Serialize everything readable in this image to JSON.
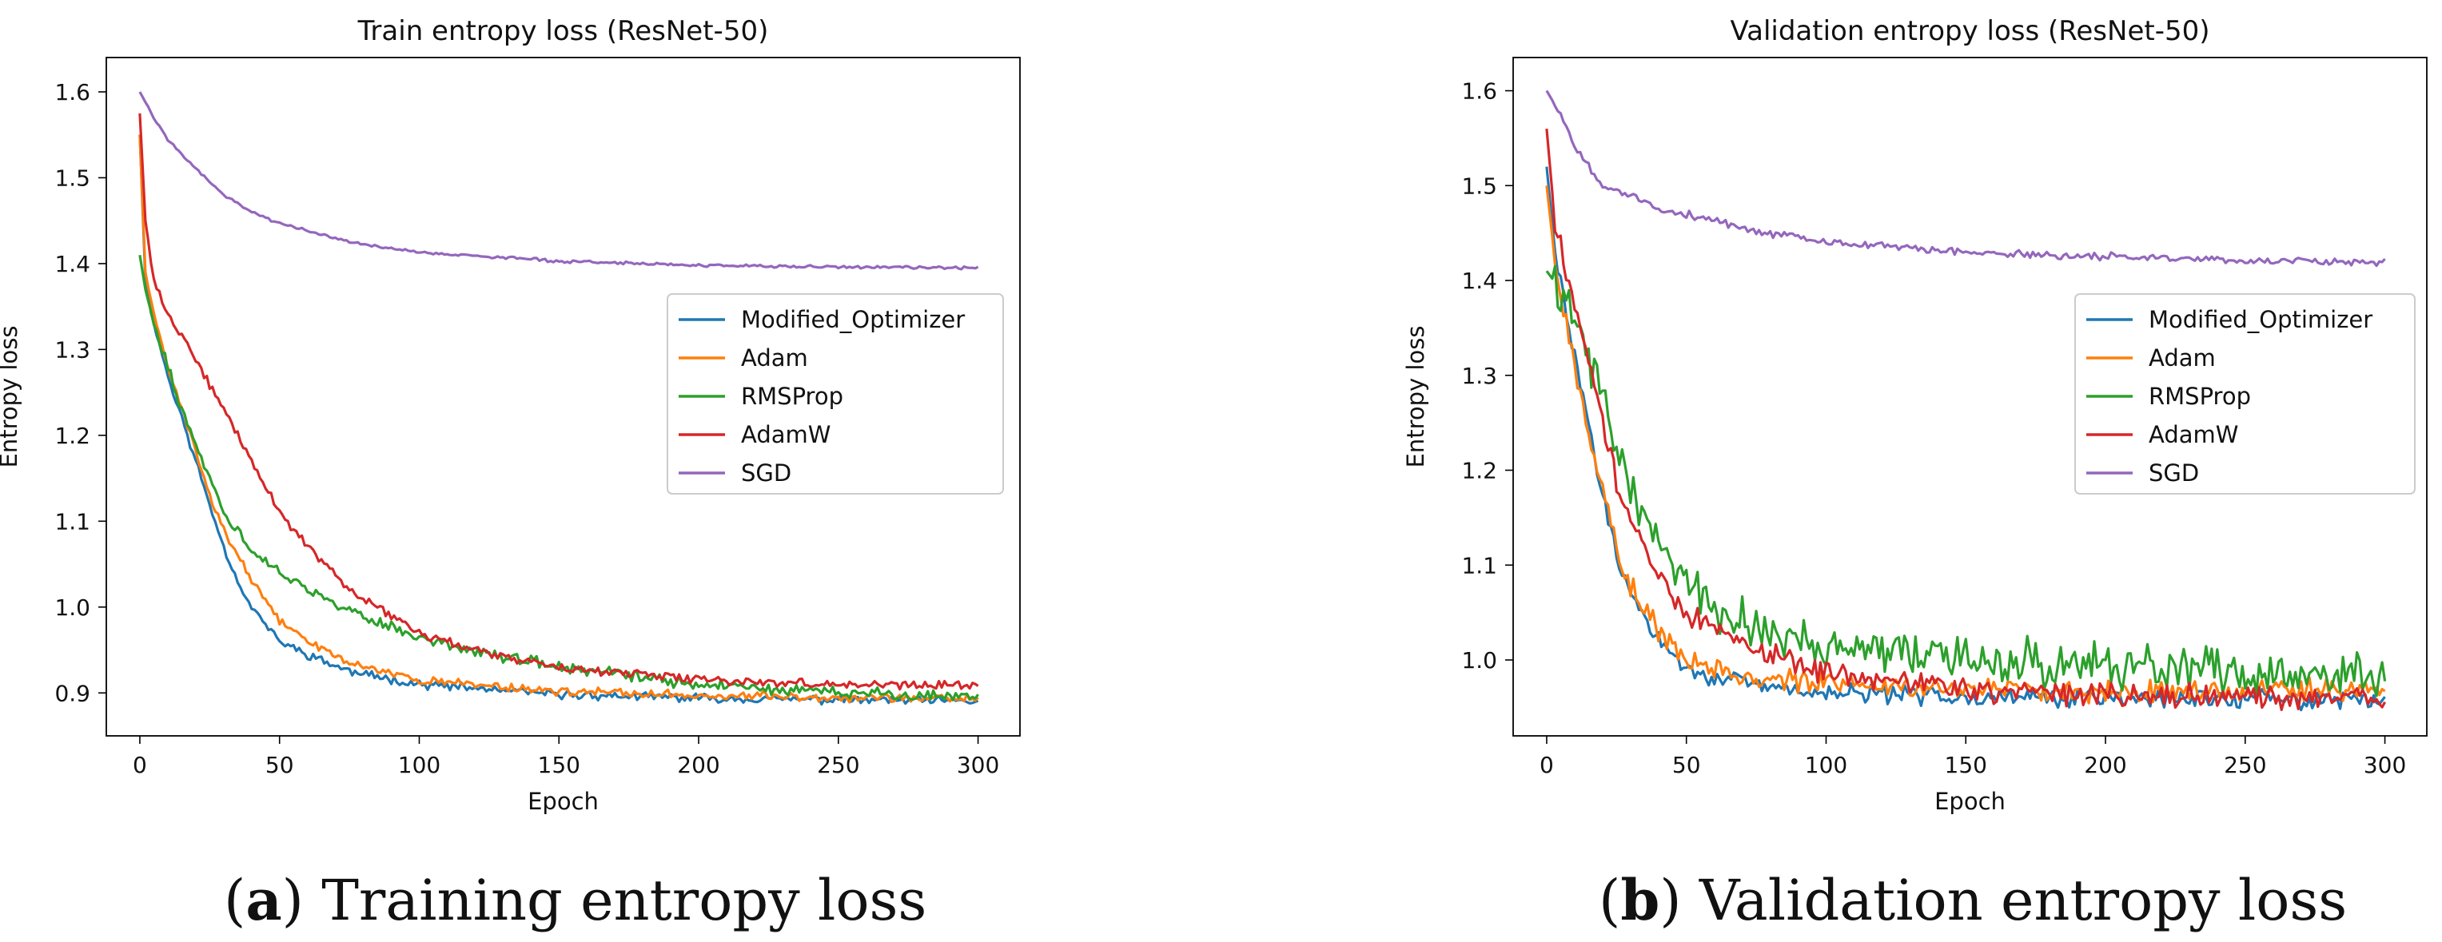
{
  "chart_data": [
    {
      "type": "line",
      "title": "Train entropy loss (ResNet-50)",
      "xlabel": "Epoch",
      "ylabel": "Entropy loss",
      "xlim": [
        -12,
        315
      ],
      "ylim": [
        0.85,
        1.64
      ],
      "xticks": [
        0,
        50,
        100,
        150,
        200,
        250,
        300
      ],
      "yticks": [
        0.9,
        1.0,
        1.1,
        1.2,
        1.3,
        1.4,
        1.5,
        1.6
      ],
      "legend_position": "center-right",
      "grid": false,
      "noise_seed": 11,
      "series": [
        {
          "name": "Modified_Optimizer",
          "color": "#1f77b4",
          "noise": 0.006,
          "points": [
            [
              0,
              1.55
            ],
            [
              2,
              1.38
            ],
            [
              5,
              1.33
            ],
            [
              10,
              1.27
            ],
            [
              15,
              1.22
            ],
            [
              20,
              1.17
            ],
            [
              25,
              1.12
            ],
            [
              30,
              1.07
            ],
            [
              35,
              1.03
            ],
            [
              40,
              1.0
            ],
            [
              50,
              0.96
            ],
            [
              60,
              0.945
            ],
            [
              75,
              0.925
            ],
            [
              100,
              0.91
            ],
            [
              150,
              0.898
            ],
            [
              200,
              0.894
            ],
            [
              300,
              0.89
            ]
          ]
        },
        {
          "name": "Adam",
          "color": "#ff7f0e",
          "noise": 0.006,
          "points": [
            [
              0,
              1.55
            ],
            [
              2,
              1.39
            ],
            [
              5,
              1.34
            ],
            [
              10,
              1.28
            ],
            [
              15,
              1.23
            ],
            [
              20,
              1.18
            ],
            [
              25,
              1.13
            ],
            [
              30,
              1.09
            ],
            [
              35,
              1.06
            ],
            [
              40,
              1.03
            ],
            [
              50,
              0.985
            ],
            [
              60,
              0.96
            ],
            [
              75,
              0.935
            ],
            [
              100,
              0.915
            ],
            [
              150,
              0.902
            ],
            [
              200,
              0.897
            ],
            [
              300,
              0.893
            ]
          ]
        },
        {
          "name": "RMSProp",
          "color": "#2ca02c",
          "noise": 0.008,
          "points": [
            [
              0,
              1.41
            ],
            [
              2,
              1.37
            ],
            [
              5,
              1.33
            ],
            [
              10,
              1.28
            ],
            [
              15,
              1.23
            ],
            [
              20,
              1.19
            ],
            [
              25,
              1.15
            ],
            [
              30,
              1.11
            ],
            [
              35,
              1.09
            ],
            [
              40,
              1.065
            ],
            [
              50,
              1.04
            ],
            [
              60,
              1.02
            ],
            [
              75,
              0.995
            ],
            [
              100,
              0.965
            ],
            [
              125,
              0.945
            ],
            [
              150,
              0.93
            ],
            [
              200,
              0.91
            ],
            [
              250,
              0.9
            ],
            [
              300,
              0.896
            ]
          ]
        },
        {
          "name": "AdamW",
          "color": "#d62728",
          "noise": 0.006,
          "points": [
            [
              0,
              1.575
            ],
            [
              2,
              1.45
            ],
            [
              5,
              1.38
            ],
            [
              10,
              1.34
            ],
            [
              20,
              1.29
            ],
            [
              30,
              1.23
            ],
            [
              40,
              1.17
            ],
            [
              50,
              1.11
            ],
            [
              60,
              1.07
            ],
            [
              75,
              1.02
            ],
            [
              100,
              0.97
            ],
            [
              125,
              0.945
            ],
            [
              150,
              0.93
            ],
            [
              200,
              0.915
            ],
            [
              250,
              0.91
            ],
            [
              300,
              0.908
            ]
          ]
        },
        {
          "name": "SGD",
          "color": "#9467bd",
          "noise": 0.002,
          "points": [
            [
              0,
              1.6
            ],
            [
              5,
              1.57
            ],
            [
              10,
              1.545
            ],
            [
              20,
              1.51
            ],
            [
              30,
              1.48
            ],
            [
              40,
              1.46
            ],
            [
              50,
              1.447
            ],
            [
              75,
              1.425
            ],
            [
              100,
              1.413
            ],
            [
              150,
              1.403
            ],
            [
              200,
              1.398
            ],
            [
              250,
              1.396
            ],
            [
              300,
              1.395
            ]
          ]
        }
      ]
    },
    {
      "type": "line",
      "title": "Validation entropy loss (ResNet-50)",
      "xlabel": "Epoch",
      "ylabel": "Entropy loss",
      "xlim": [
        -12,
        315
      ],
      "ylim": [
        0.92,
        1.635
      ],
      "xticks": [
        0,
        50,
        100,
        150,
        200,
        250,
        300
      ],
      "yticks": [
        1.0,
        1.1,
        1.2,
        1.3,
        1.4,
        1.5,
        1.6
      ],
      "legend_position": "center-right",
      "grid": false,
      "noise_seed": 29,
      "series": [
        {
          "name": "Modified_Optimizer",
          "color": "#1f77b4",
          "noise": 0.012,
          "points": [
            [
              0,
              1.52
            ],
            [
              3,
              1.43
            ],
            [
              8,
              1.35
            ],
            [
              15,
              1.25
            ],
            [
              20,
              1.17
            ],
            [
              25,
              1.11
            ],
            [
              30,
              1.07
            ],
            [
              40,
              1.02
            ],
            [
              50,
              0.99
            ],
            [
              75,
              0.972
            ],
            [
              100,
              0.965
            ],
            [
              150,
              0.962
            ],
            [
              200,
              0.96
            ],
            [
              300,
              0.958
            ]
          ]
        },
        {
          "name": "Adam",
          "color": "#ff7f0e",
          "noise": 0.014,
          "points": [
            [
              0,
              1.5
            ],
            [
              3,
              1.42
            ],
            [
              8,
              1.34
            ],
            [
              15,
              1.24
            ],
            [
              20,
              1.18
            ],
            [
              25,
              1.12
            ],
            [
              30,
              1.08
            ],
            [
              40,
              1.03
            ],
            [
              50,
              1.0
            ],
            [
              75,
              0.98
            ],
            [
              100,
              0.975
            ],
            [
              150,
              0.97
            ],
            [
              200,
              0.968
            ],
            [
              300,
              0.968
            ]
          ]
        },
        {
          "name": "RMSProp",
          "color": "#2ca02c",
          "noise": 0.03,
          "points": [
            [
              0,
              1.41
            ],
            [
              5,
              1.39
            ],
            [
              10,
              1.36
            ],
            [
              15,
              1.32
            ],
            [
              20,
              1.27
            ],
            [
              25,
              1.22
            ],
            [
              30,
              1.18
            ],
            [
              40,
              1.12
            ],
            [
              50,
              1.08
            ],
            [
              60,
              1.05
            ],
            [
              80,
              1.03
            ],
            [
              100,
              1.015
            ],
            [
              150,
              1.0
            ],
            [
              200,
              0.995
            ],
            [
              250,
              0.987
            ],
            [
              300,
              0.982
            ]
          ]
        },
        {
          "name": "AdamW",
          "color": "#d62728",
          "noise": 0.016,
          "points": [
            [
              0,
              1.56
            ],
            [
              3,
              1.46
            ],
            [
              8,
              1.4
            ],
            [
              15,
              1.32
            ],
            [
              20,
              1.25
            ],
            [
              25,
              1.19
            ],
            [
              30,
              1.15
            ],
            [
              40,
              1.09
            ],
            [
              50,
              1.05
            ],
            [
              60,
              1.03
            ],
            [
              75,
              1.01
            ],
            [
              100,
              0.985
            ],
            [
              150,
              0.97
            ],
            [
              200,
              0.962
            ],
            [
              300,
              0.958
            ]
          ]
        },
        {
          "name": "SGD",
          "color": "#9467bd",
          "noise": 0.005,
          "points": [
            [
              0,
              1.6
            ],
            [
              5,
              1.575
            ],
            [
              10,
              1.54
            ],
            [
              20,
              1.5
            ],
            [
              30,
              1.49
            ],
            [
              40,
              1.475
            ],
            [
              50,
              1.47
            ],
            [
              75,
              1.452
            ],
            [
              100,
              1.44
            ],
            [
              150,
              1.43
            ],
            [
              200,
              1.425
            ],
            [
              250,
              1.421
            ],
            [
              300,
              1.42
            ]
          ]
        }
      ]
    }
  ],
  "captions": {
    "a_label": "a",
    "a_text": "Training entropy loss",
    "b_label": "b",
    "b_text": "Validation entropy loss"
  }
}
